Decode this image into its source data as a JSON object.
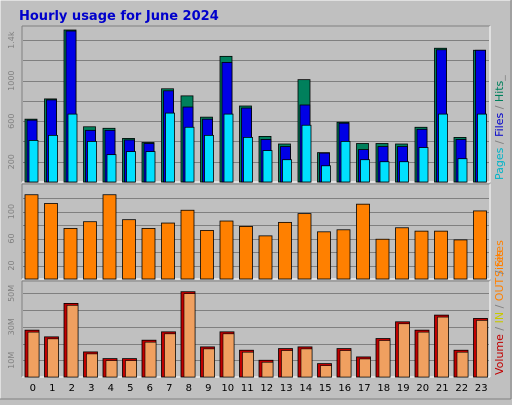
{
  "title": "Hourly usage for June 2024",
  "colors": {
    "background": "#c0c0c0",
    "panel": "#c0c0c0",
    "hits": "#00805c",
    "files": "#0000e6",
    "pages": "#00e0ff",
    "sites": "#ff8000",
    "volume": "#c00000",
    "volume_in": "#f0a060",
    "title": "#0000cc",
    "label_pages": "#00b4c8",
    "label_files": "#0000cc",
    "label_hits": "#00805c",
    "label_sites": "#ff8000",
    "label_in": "#c8c800",
    "label_out": "#ff8000",
    "label_volume": "#c00000"
  },
  "chart_data": [
    {
      "type": "bar",
      "categories": [
        "0",
        "1",
        "2",
        "3",
        "4",
        "5",
        "6",
        "7",
        "8",
        "9",
        "10",
        "11",
        "12",
        "13",
        "14",
        "15",
        "16",
        "17",
        "18",
        "19",
        "20",
        "21",
        "22",
        "23"
      ],
      "ylim": [
        0,
        1500
      ],
      "yticks": [
        "200",
        "600",
        "1000",
        "1.4k"
      ],
      "ytick_values": [
        200,
        600,
        1000,
        1400
      ],
      "side_label": [
        "Pages",
        " / ",
        "Files",
        " / ",
        "Hits",
        "_"
      ],
      "series": [
        {
          "name": "Hits",
          "values": [
            620,
            820,
            1500,
            545,
            530,
            430,
            390,
            920,
            850,
            640,
            1240,
            750,
            450,
            375,
            1010,
            290,
            590,
            380,
            380,
            375,
            540,
            1320,
            440,
            1300
          ]
        },
        {
          "name": "Files",
          "values": [
            610,
            810,
            1490,
            510,
            510,
            415,
            380,
            900,
            740,
            620,
            1180,
            730,
            420,
            350,
            760,
            285,
            580,
            320,
            350,
            350,
            520,
            1305,
            420,
            1300
          ]
        },
        {
          "name": "Pages",
          "values": [
            410,
            460,
            670,
            400,
            270,
            300,
            300,
            680,
            540,
            460,
            670,
            440,
            310,
            220,
            560,
            160,
            400,
            220,
            200,
            200,
            340,
            670,
            230,
            670
          ]
        }
      ]
    },
    {
      "type": "bar",
      "categories": [
        "0",
        "1",
        "2",
        "3",
        "4",
        "5",
        "6",
        "7",
        "8",
        "9",
        "10",
        "11",
        "12",
        "13",
        "14",
        "15",
        "16",
        "17",
        "18",
        "19",
        "20",
        "21",
        "22",
        "23"
      ],
      "ylim": [
        0,
        135
      ],
      "yticks": [
        "20",
        "60",
        "100"
      ],
      "ytick_values": [
        20,
        60,
        100
      ],
      "side_label": [
        "Sites"
      ],
      "series": [
        {
          "name": "Sites",
          "values": [
            125,
            112,
            75,
            85,
            125,
            88,
            75,
            83,
            102,
            72,
            86,
            78,
            64,
            84,
            97,
            70,
            73,
            111,
            59,
            76,
            71,
            71,
            58,
            101
          ]
        }
      ]
    },
    {
      "type": "bar",
      "categories": [
        "0",
        "1",
        "2",
        "3",
        "4",
        "5",
        "6",
        "7",
        "8",
        "9",
        "10",
        "11",
        "12",
        "13",
        "14",
        "15",
        "16",
        "17",
        "18",
        "19",
        "20",
        "21",
        "22",
        "23"
      ],
      "ylim": [
        0,
        55
      ],
      "yticks": [
        "10M",
        "30M",
        "50M"
      ],
      "ytick_values": [
        10,
        30,
        50
      ],
      "side_label": [
        "Volume",
        " / ",
        "IN",
        " / ",
        "OUT",
        " / ",
        "Sites"
      ],
      "series": [
        {
          "name": "Volume",
          "values": [
            28,
            24,
            44,
            15,
            11,
            11,
            22,
            27,
            51,
            18,
            27,
            16,
            10,
            17,
            18,
            8,
            17,
            12,
            23,
            33,
            28,
            37,
            16,
            35
          ]
        }
      ]
    }
  ]
}
